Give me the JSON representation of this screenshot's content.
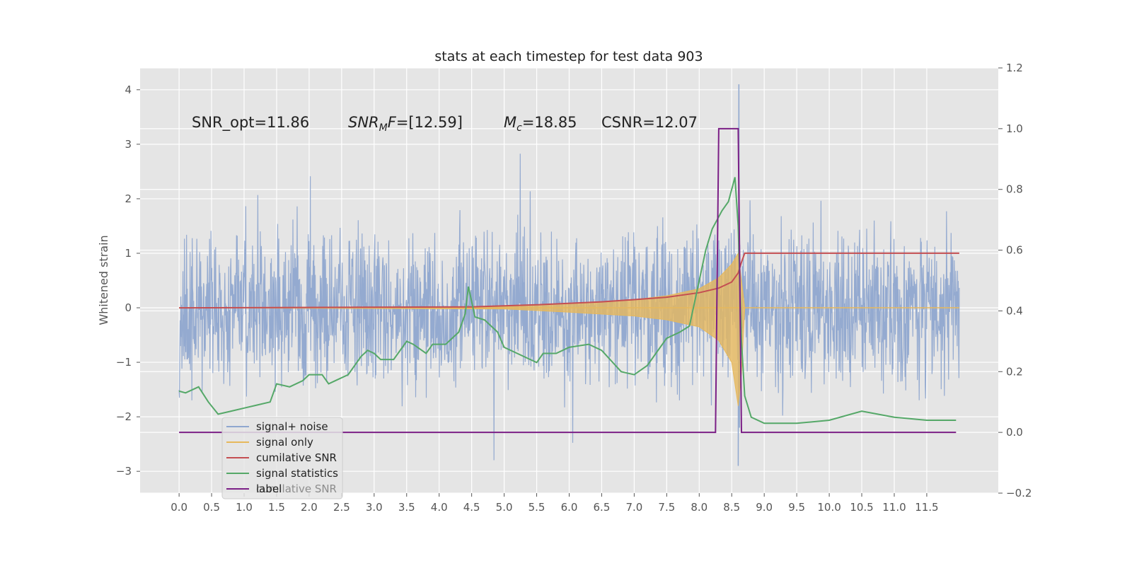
{
  "chart_data": {
    "type": "line",
    "title": "stats at each timestep for test data 903",
    "xlabel": "",
    "ylabel": "Whitened strain",
    "y2label": "",
    "xlim": [
      -0.6,
      12.6
    ],
    "ylim": [
      -3.4,
      4.4
    ],
    "y2lim": [
      -0.2,
      1.2
    ],
    "xticks": [
      "0.0",
      "0.5",
      "1.0",
      "1.5",
      "2.0",
      "2.5",
      "3.0",
      "3.5",
      "4.0",
      "4.5",
      "5.0",
      "5.5",
      "6.0",
      "6.5",
      "7.0",
      "7.5",
      "8.0",
      "8.5",
      "9.0",
      "9.5",
      "10.0",
      "10.5",
      "11.0",
      "11.5"
    ],
    "yticks": [
      "−3",
      "−2",
      "−1",
      "0",
      "1",
      "2",
      "3",
      "4"
    ],
    "y2ticks": [
      "−0.2",
      "0.0",
      "0.2",
      "0.4",
      "0.6",
      "0.8",
      "1.0",
      "1.2"
    ],
    "grid": true,
    "legend_position": "lower-left",
    "colors": {
      "noise": "#8fa7cf",
      "signal": "#e6b85c",
      "snr": "#c44e52",
      "stats": "#55a868",
      "label": "#7b1f86",
      "plot_bg": "#e5e5e5",
      "grid": "#ffffff"
    },
    "series": [
      {
        "name": "signal+ noise",
        "note": "noise band approx ±1 with spikes to ±2.5, peak 4.1 near x=8.6"
      },
      {
        "name": "signal only",
        "x": [
          0,
          5,
          6,
          7,
          7.5,
          8,
          8.3,
          8.5,
          8.6,
          8.65,
          8.7,
          12
        ],
        "upper": [
          0,
          0.02,
          0.08,
          0.15,
          0.22,
          0.35,
          0.55,
          0.8,
          1.0,
          0.5,
          0,
          0
        ],
        "lower": [
          0,
          -0.02,
          -0.08,
          -0.15,
          -0.22,
          -0.35,
          -0.6,
          -1.0,
          -1.8,
          -1.2,
          0,
          0
        ]
      },
      {
        "name": "cumilative SNR",
        "axis": "right",
        "x": [
          0,
          4.5,
          5.5,
          6.5,
          7.0,
          7.5,
          8.0,
          8.3,
          8.5,
          8.6,
          8.65,
          8.7,
          12.0
        ],
        "y": [
          0.41,
          0.413,
          0.42,
          0.43,
          0.437,
          0.445,
          0.46,
          0.475,
          0.495,
          0.525,
          0.56,
          0.59,
          0.59
        ]
      },
      {
        "name": "signal statistics",
        "axis": "right",
        "x": [
          0,
          0.1,
          0.3,
          0.45,
          0.6,
          0.8,
          1.0,
          1.2,
          1.4,
          1.5,
          1.7,
          1.9,
          2.0,
          2.2,
          2.3,
          2.4,
          2.6,
          2.8,
          2.9,
          3.0,
          3.1,
          3.3,
          3.5,
          3.6,
          3.8,
          3.9,
          4.1,
          4.3,
          4.4,
          4.45,
          4.55,
          4.7,
          4.9,
          5.0,
          5.2,
          5.5,
          5.6,
          5.8,
          6.0,
          6.3,
          6.5,
          6.8,
          7.0,
          7.2,
          7.5,
          7.7,
          7.85,
          8.0,
          8.1,
          8.2,
          8.35,
          8.45,
          8.5,
          8.55,
          8.6,
          8.65,
          8.7,
          8.8,
          9.0,
          9.5,
          10.0,
          10.5,
          11.0,
          11.5,
          11.95
        ],
        "y": [
          0.136,
          0.13,
          0.15,
          0.1,
          0.06,
          0.07,
          0.08,
          0.09,
          0.1,
          0.16,
          0.15,
          0.17,
          0.19,
          0.19,
          0.16,
          0.17,
          0.19,
          0.25,
          0.27,
          0.26,
          0.24,
          0.24,
          0.3,
          0.29,
          0.26,
          0.29,
          0.29,
          0.33,
          0.39,
          0.48,
          0.38,
          0.37,
          0.33,
          0.28,
          0.26,
          0.23,
          0.26,
          0.26,
          0.28,
          0.29,
          0.27,
          0.2,
          0.19,
          0.22,
          0.31,
          0.33,
          0.35,
          0.5,
          0.6,
          0.67,
          0.73,
          0.76,
          0.8,
          0.84,
          0.68,
          0.3,
          0.12,
          0.05,
          0.03,
          0.03,
          0.04,
          0.07,
          0.05,
          0.04,
          0.04
        ]
      },
      {
        "name": "label",
        "axis": "right",
        "x": [
          0,
          8.25,
          8.3,
          8.6,
          8.65,
          11.95
        ],
        "y": [
          0,
          0,
          1,
          1,
          0,
          0
        ]
      }
    ],
    "annotations": [
      {
        "kind": "plain",
        "text": "SNR_opt=11.86"
      },
      {
        "kind": "snrmf",
        "main": "SNR",
        "sub": "M",
        "tail": "F=[12.59]"
      },
      {
        "kind": "mc",
        "main": "M",
        "sub": "c",
        "tail": "=18.85"
      },
      {
        "kind": "plain",
        "text": "CSNR=12.07"
      }
    ],
    "legend": [
      "signal+ noise",
      "signal only",
      "cumilative SNR",
      "signal statistics",
      "label"
    ],
    "legend_ghost": "cumilative SNR"
  }
}
